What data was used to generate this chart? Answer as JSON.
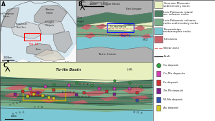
{
  "fig_width": 3.12,
  "fig_height": 1.76,
  "dpi": 100,
  "background": "#ffffff",
  "colors": {
    "cenozoic": "#e8f0c0",
    "late_paleo_arc": "#4e7f62",
    "late_paleo_volc": "#7aaf8a",
    "precambrian": "#7bc8d4",
    "intrusions": "#c8606a",
    "craton_gray": "#b0b0b0",
    "shear_pink": "#e07878",
    "fault_dark": "#202020",
    "bg_white": "#f5f5f5",
    "ocean_light": "#d0e8f0"
  },
  "legend_items": [
    {
      "label": "Cenozoic-Mesozoic\nsedimentary rocks",
      "color": "#e8f0c0",
      "type": "rect"
    },
    {
      "label": "Late Paleozoic island\narc volcanic rocks",
      "color": "#4e7f62",
      "type": "rect"
    },
    {
      "label": "Late Paleozoic volcanic\nrocks sedimentary rocks",
      "color": "#7aaf8a",
      "type": "rect"
    },
    {
      "label": "Precambrian\nmetamorphic rocks",
      "color": "#7bc8d4",
      "type": "rect"
    },
    {
      "label": "Intrusions",
      "color": "#c8606a",
      "type": "rect"
    },
    {
      "label": "Shear zone",
      "color": "#e07878",
      "type": "line_dash"
    },
    {
      "label": "Fault",
      "color": "#202020",
      "type": "line"
    },
    {
      "label": "Cu deposit",
      "color": "#30a040",
      "type": "circle"
    },
    {
      "label": "Cu-Mo deposits",
      "color": "#d040b0",
      "type": "square"
    },
    {
      "label": "Fe deposit",
      "color": "#d03030",
      "type": "square"
    },
    {
      "label": "Zn-Pb deposit",
      "color": "#802090",
      "type": "square"
    },
    {
      "label": "W-Mo deposit",
      "color": "#3050b0",
      "type": "square"
    },
    {
      "label": "Au deposit",
      "color": "#d0c820",
      "type": "square"
    }
  ]
}
